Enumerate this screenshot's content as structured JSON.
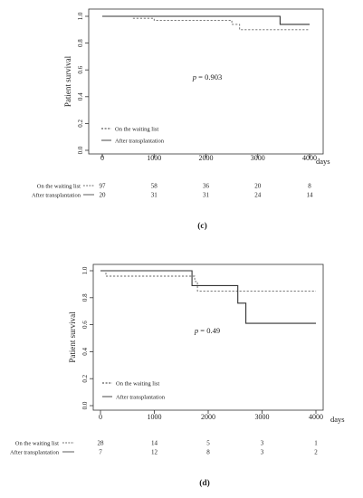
{
  "chart_data": [
    {
      "type": "line",
      "panel_label": "(c)",
      "ylabel": "Patient survival",
      "xlabel": "days",
      "xlim": [
        0,
        4000
      ],
      "ylim": [
        0,
        1.0
      ],
      "x_ticks": [
        0,
        1000,
        2000,
        3000,
        4000
      ],
      "x_tick_labels": [
        "0",
        "1000",
        "2000",
        "3000",
        "4000"
      ],
      "y_ticks": [
        0.0,
        0.2,
        0.4,
        0.6,
        0.8,
        1.0
      ],
      "y_tick_labels": [
        "0.0",
        "0.2",
        "0.4",
        "0.6",
        "0.8",
        "1.0"
      ],
      "annotation_prefix": "p",
      "annotation_value": " = 0.903",
      "legend_position": "bottom-left",
      "series": [
        {
          "name": "On the waiting list",
          "style": "dashed",
          "x": [
            0,
            600,
            600,
            1000,
            1000,
            2500,
            2500,
            2650,
            2650,
            4000
          ],
          "y": [
            1.0,
            1.0,
            0.985,
            0.985,
            0.97,
            0.97,
            0.94,
            0.94,
            0.9,
            0.9
          ]
        },
        {
          "name": "After transplantation",
          "style": "solid",
          "x": [
            0,
            3430,
            3430,
            4000
          ],
          "y": [
            1.0,
            1.0,
            0.94,
            0.94
          ]
        }
      ],
      "risk_table": {
        "times": [
          0,
          1000,
          2000,
          3000,
          4000
        ],
        "rows": [
          {
            "label": "On the waiting list",
            "style": "dashed",
            "values": [
              "97",
              "58",
              "36",
              "20",
              "8"
            ]
          },
          {
            "label": "After transplantation",
            "style": "solid",
            "values": [
              "20",
              "31",
              "31",
              "24",
              "14"
            ]
          }
        ]
      }
    },
    {
      "type": "line",
      "panel_label": "(d)",
      "ylabel": "Patient survival",
      "xlabel": "days",
      "xlim": [
        0,
        4000
      ],
      "ylim": [
        0,
        1.0
      ],
      "x_ticks": [
        0,
        1000,
        2000,
        3000,
        4000
      ],
      "x_tick_labels": [
        "0",
        "1000",
        "2000",
        "3000",
        "4000"
      ],
      "y_ticks": [
        0.0,
        0.2,
        0.4,
        0.6,
        0.8,
        1.0
      ],
      "y_tick_labels": [
        "0.0",
        "0.2",
        "0.4",
        "0.6",
        "0.8",
        "1.0"
      ],
      "annotation_prefix": "p",
      "annotation_value": " = 0.49",
      "legend_position": "bottom-left",
      "series": [
        {
          "name": "On the waiting list",
          "style": "dashed",
          "x": [
            0,
            100,
            100,
            1750,
            1750,
            1800,
            1800,
            4000
          ],
          "y": [
            1.0,
            1.0,
            0.96,
            0.96,
            0.92,
            0.92,
            0.85,
            0.85
          ]
        },
        {
          "name": "After transplantation",
          "style": "solid",
          "x": [
            0,
            1700,
            1700,
            2550,
            2550,
            2700,
            2700,
            4000
          ],
          "y": [
            1.0,
            1.0,
            0.89,
            0.89,
            0.76,
            0.76,
            0.61,
            0.61
          ]
        }
      ],
      "risk_table": {
        "times": [
          0,
          1000,
          2000,
          3000,
          4000
        ],
        "rows": [
          {
            "label": "On the waiting list",
            "style": "dashed",
            "values": [
              "28",
              "14",
              "5",
              "3",
              "1"
            ]
          },
          {
            "label": "After transplantation",
            "style": "solid",
            "values": [
              "7",
              "12",
              "8",
              "3",
              "2"
            ]
          }
        ]
      }
    }
  ]
}
